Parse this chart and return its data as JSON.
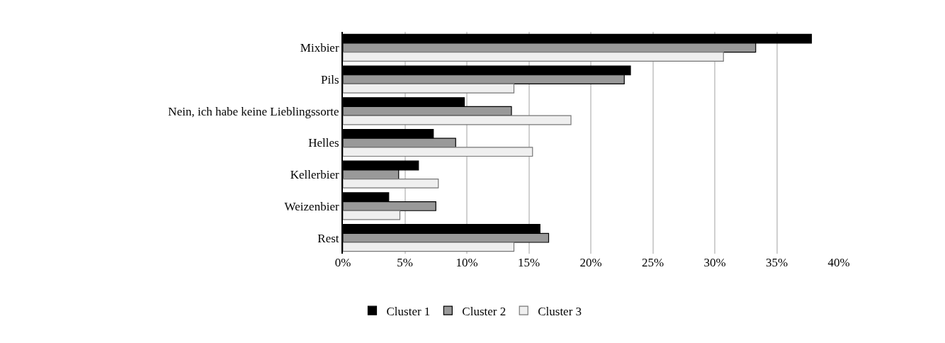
{
  "chart_data": {
    "type": "bar",
    "orientation": "horizontal",
    "categories": [
      "Mixbier",
      "Pils",
      "Nein, ich habe keine Lieblingssorte",
      "Helles",
      "Kellerbier",
      "Weizenbier",
      "Rest"
    ],
    "series": [
      {
        "name": "Cluster 1",
        "color": "#000000",
        "values": [
          37.8,
          23.2,
          9.8,
          7.3,
          6.1,
          3.7,
          15.9
        ]
      },
      {
        "name": "Cluster 2",
        "color": "#999999",
        "values": [
          33.3,
          22.7,
          13.6,
          9.1,
          4.5,
          7.5,
          16.6
        ]
      },
      {
        "name": "Cluster 3",
        "color": "#efefef",
        "values": [
          30.7,
          13.8,
          18.4,
          15.3,
          7.7,
          4.6,
          13.8
        ]
      }
    ],
    "xlim": [
      0,
      40
    ],
    "xticks": [
      {
        "value": 0,
        "label": "0%"
      },
      {
        "value": 5,
        "label": "5%"
      },
      {
        "value": 10,
        "label": "10%"
      },
      {
        "value": 15,
        "label": "15%"
      },
      {
        "value": 20,
        "label": "20%"
      },
      {
        "value": 25,
        "label": "25%"
      },
      {
        "value": 30,
        "label": "30%"
      },
      {
        "value": 35,
        "label": "35%"
      },
      {
        "value": 40,
        "label": "40%"
      }
    ],
    "grid": "x",
    "legend": "bottom"
  }
}
